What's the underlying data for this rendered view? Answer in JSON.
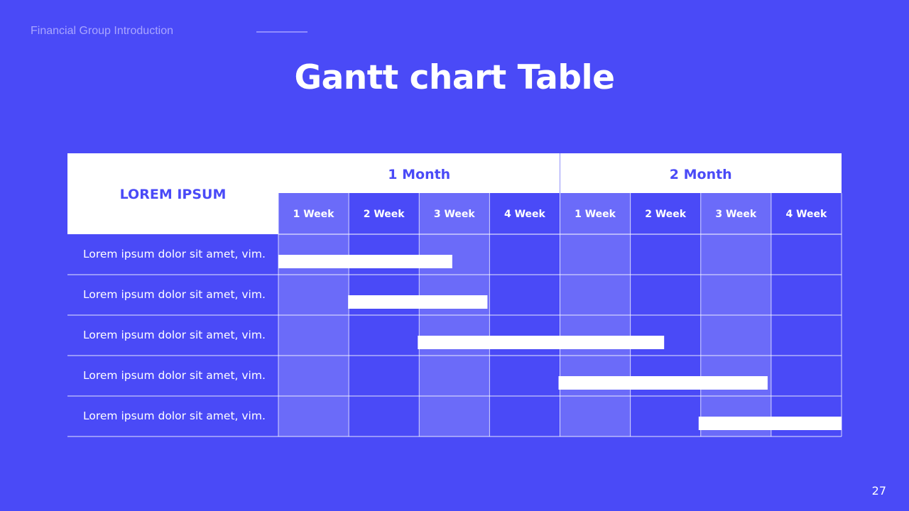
{
  "header": {
    "label": "Financial Group Introduction"
  },
  "title": "Gantt chart Table",
  "page_number": "27",
  "chart_data": {
    "type": "table",
    "corner_label": "LOREM IPSUM",
    "months": [
      {
        "label": "1 Month",
        "weeks": [
          "1 Week",
          "2 Week",
          "3 Week",
          "4 Week"
        ]
      },
      {
        "label": "2 Month",
        "weeks": [
          "1 Week",
          "2 Week",
          "3 Week",
          "4 Week"
        ]
      }
    ],
    "highlighted_week_columns": [
      0,
      2,
      4,
      6
    ],
    "tasks": [
      {
        "label": "Lorem ipsum dolor sit amet, vim.",
        "start_week": 0.0,
        "end_week": 2.47
      },
      {
        "label": "Lorem ipsum dolor sit amet, vim.",
        "start_week": 0.99,
        "end_week": 2.97
      },
      {
        "label": "Lorem ipsum dolor sit amet, vim.",
        "start_week": 1.98,
        "end_week": 5.48
      },
      {
        "label": "Lorem ipsum dolor sit amet, vim.",
        "start_week": 3.98,
        "end_week": 6.95
      },
      {
        "label": "Lorem ipsum dolor sit amet, vim.",
        "start_week": 5.97,
        "end_week": 8.0
      }
    ],
    "colors": {
      "background": "#4a4af7",
      "header_fill": "#ffffff",
      "header_text": "#4a4af7",
      "highlight_column": "#6b6bf9",
      "bar": "#ffffff",
      "grid": "#ffffff",
      "text": "#ffffff"
    }
  }
}
